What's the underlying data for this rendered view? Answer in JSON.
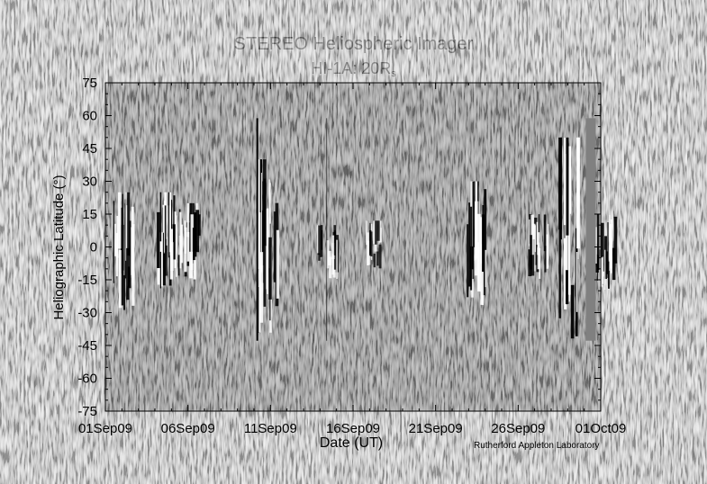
{
  "title": "STEREO Heliospheric Imager",
  "subtitle_main": "HI-1A: 20R",
  "subtitle_sub": "s",
  "credit": "Rutherford Appleton Laboratory",
  "colors": {
    "background": "#ffffff",
    "plot_fill": "#808080",
    "axis": "#000000"
  },
  "chart_data": {
    "type": "heatmap",
    "title": "STEREO Heliospheric Imager",
    "subtitle": "HI-1A: 20Rs",
    "xlabel": "Date (UT)",
    "ylabel": "Heliographic Latitude (°)",
    "x_range": [
      "2009-09-01",
      "2009-10-01"
    ],
    "ylim": [
      -75,
      75
    ],
    "x_tick_labels": [
      "01Sep09",
      "06Sep09",
      "11Sep09",
      "16Sep09",
      "21Sep09",
      "26Sep09",
      "01Oct09"
    ],
    "x_tick_days": [
      0,
      5,
      10,
      15,
      20,
      25,
      30
    ],
    "y_ticks": [
      75,
      60,
      45,
      30,
      15,
      0,
      -15,
      -30,
      -45,
      -60,
      -75
    ],
    "data_latitude_range": [
      -42,
      58
    ],
    "data_gaps": [
      {
        "start_day": 29.1,
        "end_day": 29.7
      }
    ],
    "vertical_lines_day": [
      9.2,
      13.4
    ],
    "features": [
      {
        "day": 1.0,
        "lat_from": -30,
        "lat_to": 25,
        "strength": 0.85
      },
      {
        "day": 3.7,
        "lat_from": -20,
        "lat_to": 25,
        "strength": 1.0
      },
      {
        "day": 5.0,
        "lat_from": -15,
        "lat_to": 20,
        "strength": 0.9
      },
      {
        "day": 9.8,
        "lat_from": -40,
        "lat_to": 40,
        "strength": 0.8
      },
      {
        "day": 13.4,
        "lat_from": -15,
        "lat_to": 10,
        "strength": 0.65
      },
      {
        "day": 16.2,
        "lat_from": -10,
        "lat_to": 12,
        "strength": 0.55
      },
      {
        "day": 22.4,
        "lat_from": -30,
        "lat_to": 30,
        "strength": 0.9
      },
      {
        "day": 26.2,
        "lat_from": -15,
        "lat_to": 15,
        "strength": 0.75
      },
      {
        "day": 28.0,
        "lat_from": -42,
        "lat_to": 50,
        "strength": 1.0
      },
      {
        "day": 30.2,
        "lat_from": -20,
        "lat_to": 15,
        "strength": 0.9
      }
    ],
    "band_center_lat": -2,
    "band_halfwidth_lat": 14,
    "grid": false
  }
}
